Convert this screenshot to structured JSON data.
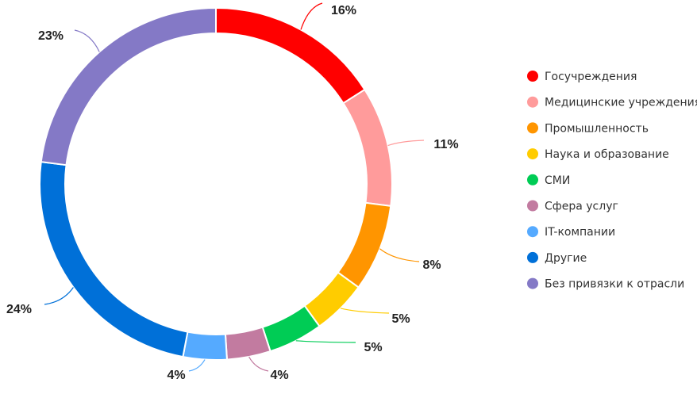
{
  "chart_data": {
    "type": "pie",
    "variant": "donut",
    "title": "",
    "legend_position": "right",
    "categories": [
      "Госучреждения",
      "Медицинские учреждения",
      "Промышленность",
      "Наука и образование",
      "СМИ",
      "Сфера услуг",
      "IT-компании",
      "Другие",
      "Без привязки к отрасли"
    ],
    "values": [
      16,
      11,
      8,
      5,
      5,
      4,
      4,
      24,
      23
    ],
    "labels": [
      "16%",
      "11%",
      "8%",
      "5%",
      "5%",
      "4%",
      "4%",
      "24%",
      "23%"
    ],
    "colors": [
      "#ff0000",
      "#ff9b9b",
      "#ff9500",
      "#ffcc00",
      "#00cc55",
      "#c27ba0",
      "#55aaff",
      "#0070d8",
      "#8479c6"
    ]
  }
}
